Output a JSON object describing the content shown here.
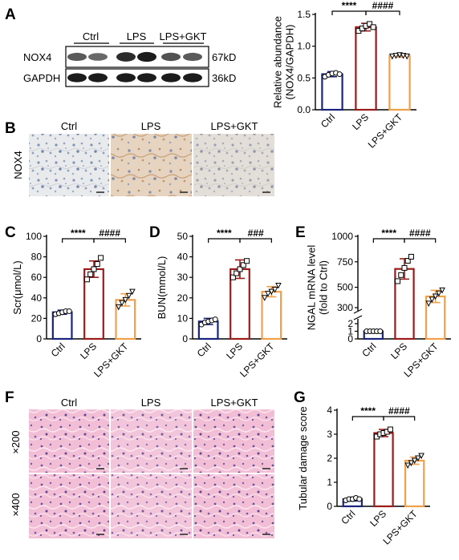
{
  "colors": {
    "ctrl": "#1a237e",
    "lps": "#9b1b1b",
    "gkt": "#f0a04b",
    "band": "#151515",
    "ihc_bg": "#e9ecee",
    "he_bg": "#f3c6dc"
  },
  "panels": {
    "A": {
      "letter": "A",
      "blot_groups": [
        "Ctrl",
        "LPS",
        "LPS+GKT"
      ],
      "rows": [
        {
          "label": "NOX4",
          "size": "67kD",
          "intensities": [
            0.55,
            0.45,
            0.85,
            0.95,
            0.6,
            0.55
          ]
        },
        {
          "label": "GAPDH",
          "size": "36kD",
          "intensities": [
            0.95,
            0.95,
            0.95,
            0.95,
            0.95,
            0.95
          ]
        }
      ]
    },
    "B": {
      "letter": "B",
      "row_label": "NOX4",
      "columns": [
        "Ctrl",
        "LPS",
        "LPS+GKT"
      ]
    },
    "C": {
      "letter": "C"
    },
    "D": {
      "letter": "D"
    },
    "E": {
      "letter": "E"
    },
    "F": {
      "letter": "F",
      "columns": [
        "Ctrl",
        "LPS",
        "LPS+GKT"
      ],
      "rows": [
        "×200",
        "×400"
      ]
    },
    "G": {
      "letter": "G"
    }
  },
  "chart_data": [
    {
      "id": "A",
      "type": "bar",
      "categories": [
        "Ctrl",
        "LPS",
        "LPS+GKT"
      ],
      "ylabel": "Relative abundance\n(NOX4/GAPDH)",
      "ylim": [
        0,
        1.5
      ],
      "yticks": [
        0.0,
        0.5,
        1.0,
        1.5
      ],
      "values": [
        0.56,
        1.3,
        0.85
      ],
      "errors": [
        0.04,
        0.06,
        0.02
      ],
      "points": [
        [
          0.52,
          0.55,
          0.57,
          0.58,
          0.56
        ],
        [
          1.24,
          1.28,
          1.32,
          1.35,
          1.3
        ],
        [
          0.84,
          0.85,
          0.86,
          0.85,
          0.84
        ]
      ],
      "significance": [
        {
          "from": 0,
          "to": 1,
          "label": "****"
        },
        {
          "from": 1,
          "to": 2,
          "label": "####"
        }
      ]
    },
    {
      "id": "C",
      "type": "bar",
      "categories": [
        "Ctrl",
        "LPS",
        "LPS+GKT"
      ],
      "ylabel": "Scr(μmol/L)",
      "ylim": [
        0,
        100
      ],
      "yticks": [
        0,
        20,
        40,
        60,
        80,
        100
      ],
      "values": [
        26,
        68,
        38
      ],
      "errors": [
        2,
        8,
        6
      ],
      "points": [
        [
          24,
          25,
          26,
          27,
          27
        ],
        [
          58,
          63,
          68,
          73,
          79
        ],
        [
          31,
          35,
          38,
          42,
          46
        ]
      ],
      "significance": [
        {
          "from": 0,
          "to": 1,
          "label": "****"
        },
        {
          "from": 1,
          "to": 2,
          "label": "####"
        }
      ]
    },
    {
      "id": "D",
      "type": "bar",
      "categories": [
        "Ctrl",
        "LPS",
        "LPS+GKT"
      ],
      "ylabel": "BUN(mmol/L)",
      "ylim": [
        0,
        50
      ],
      "yticks": [
        0,
        10,
        20,
        30,
        40,
        50
      ],
      "values": [
        8.5,
        34,
        23
      ],
      "errors": [
        1.5,
        4.5,
        2.5
      ],
      "points": [
        [
          7,
          8,
          8.5,
          9,
          9.5
        ],
        [
          30,
          32,
          34,
          36,
          38
        ],
        [
          20,
          22,
          23,
          24,
          26
        ]
      ],
      "significance": [
        {
          "from": 0,
          "to": 1,
          "label": "****"
        },
        {
          "from": 1,
          "to": 2,
          "label": "###"
        }
      ]
    },
    {
      "id": "E",
      "type": "bar",
      "categories": [
        "Ctrl",
        "LPS",
        "LPS+GKT"
      ],
      "ylabel": "NGAL mRNA level\n(fold to Ctrl)",
      "yticks_low": [
        0,
        1,
        2
      ],
      "yticks_high": [
        300,
        500,
        750,
        1000
      ],
      "values": [
        1,
        680,
        410
      ],
      "errors": [
        0.1,
        100,
        60
      ],
      "points": [
        [
          1,
          1,
          1,
          1,
          1
        ],
        [
          560,
          620,
          690,
          760,
          800
        ],
        [
          340,
          380,
          410,
          440,
          470
        ]
      ],
      "significance": [
        {
          "from": 0,
          "to": 1,
          "label": "****"
        },
        {
          "from": 1,
          "to": 2,
          "label": "####"
        }
      ]
    },
    {
      "id": "G",
      "type": "bar",
      "categories": [
        "Ctrl",
        "LPS",
        "LPS+GKT"
      ],
      "ylabel": "Tubular damage score",
      "ylim": [
        0,
        4
      ],
      "yticks": [
        0,
        1,
        2,
        3,
        4
      ],
      "values": [
        0.3,
        3.05,
        1.9
      ],
      "errors": [
        0.08,
        0.15,
        0.15
      ],
      "points": [
        [
          0.25,
          0.3,
          0.3,
          0.35,
          0.3
        ],
        [
          2.9,
          3.0,
          3.05,
          3.1,
          3.2
        ],
        [
          1.7,
          1.8,
          1.9,
          2.0,
          2.1
        ]
      ],
      "significance": [
        {
          "from": 0,
          "to": 1,
          "label": "****"
        },
        {
          "from": 1,
          "to": 2,
          "label": "####"
        }
      ]
    }
  ]
}
